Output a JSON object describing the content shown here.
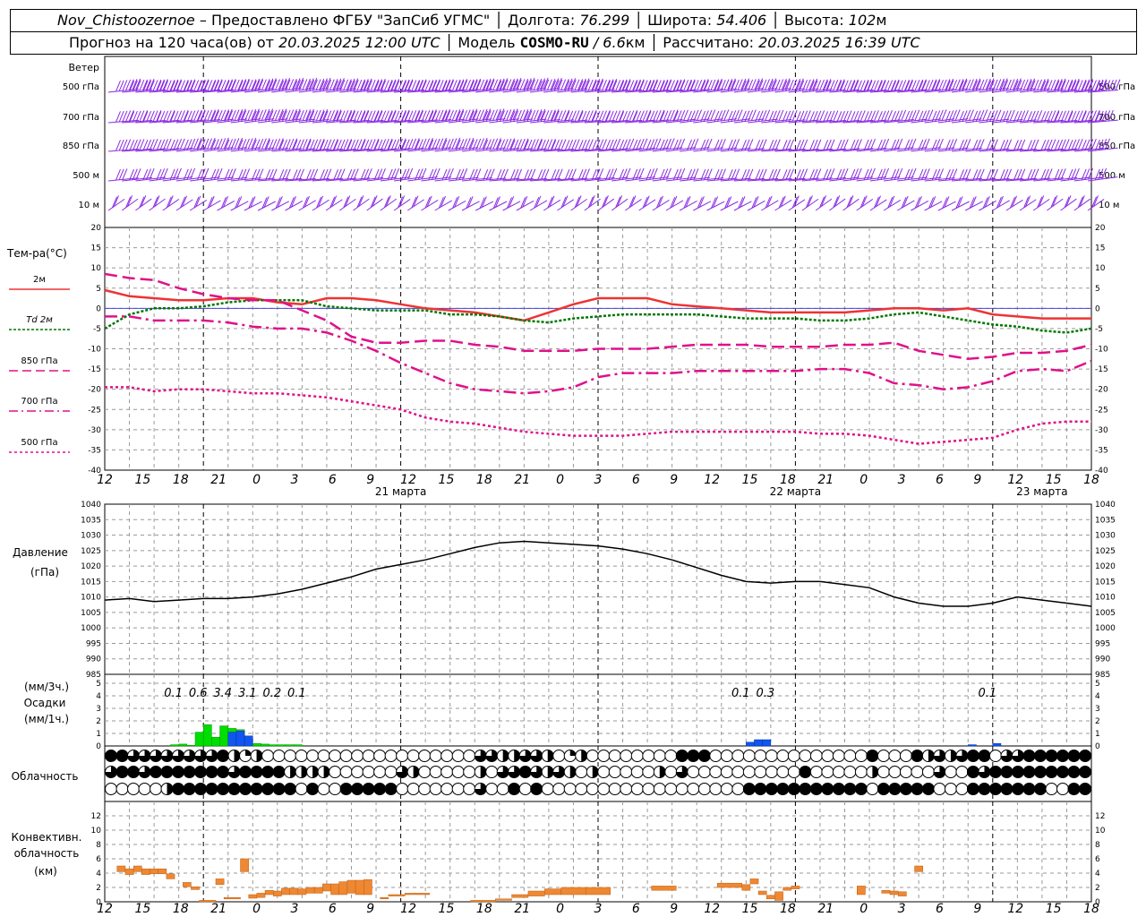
{
  "header": {
    "station": "Nov_Chistoozernoe",
    "provider_text": "– Предоставлено ФГБУ \"ЗапСиб УГМС\"",
    "lon_label": "Долгота:",
    "lon_value": "76.299",
    "lat_label": "Широта:",
    "lat_value": "54.406",
    "alt_label": "Высота:",
    "alt_value": "102",
    "alt_unit": "м",
    "forecast_prefix": "Прогноз на 120 часа(ов) от",
    "forecast_time": "20.03.2025 12:00 UTC",
    "model_label": "Модель",
    "model_name": "COSMO-RU",
    "model_res": "/ 6.6",
    "model_res_unit": "км",
    "computed_label": "Рассчитано:",
    "computed_time": "20.03.2025 16:39 UTC"
  },
  "colors": {
    "wind": "#8a2be2",
    "t2m": "#ee3333",
    "td2m": "#007700",
    "mag": "#e0108a",
    "rain": "#00dd00",
    "snow": "#1155ee",
    "conv": "#ee8833"
  },
  "time_axis": {
    "hour_labels": [
      "12",
      "15",
      "18",
      "21",
      "0",
      "3",
      "6",
      "9",
      "12",
      "15",
      "18",
      "21",
      "0",
      "3",
      "6",
      "9",
      "12",
      "15",
      "18",
      "21",
      "0",
      "3",
      "6",
      "9",
      "12",
      "15",
      "18"
    ],
    "date_labels": [
      "21 марта",
      "22 марта",
      "23 марта"
    ]
  },
  "wind_panel": {
    "title": "Ветер",
    "levels": [
      "500 гПа",
      "700 гПа",
      "850 гПа",
      "500 м",
      "10  м"
    ]
  },
  "chart_data": [
    {
      "type": "line",
      "title": "Тем-ра(°C)",
      "ylim": [
        -40,
        20
      ],
      "yticks": [
        20,
        15,
        10,
        5,
        0,
        -5,
        -10,
        -15,
        -20,
        -25,
        -30,
        -35,
        -40
      ],
      "x_unit": "hours from 20.03.2025 12 UTC",
      "series": [
        {
          "name": "2м",
          "x": [
            0,
            3,
            6,
            9,
            12,
            15,
            18,
            21,
            24,
            27,
            30,
            33,
            36,
            39,
            42,
            45,
            48,
            51,
            54,
            57,
            60,
            63,
            66,
            69,
            72,
            75,
            78,
            81,
            84,
            87,
            90,
            93,
            96,
            99,
            102,
            105,
            108,
            111,
            114,
            117,
            120
          ],
          "values": [
            4.5,
            3,
            2.5,
            2,
            2,
            2.5,
            2.5,
            1.5,
            1,
            2.5,
            2.5,
            2,
            1,
            0,
            -0.5,
            -1,
            -2,
            -3,
            -1,
            1,
            2.5,
            2.5,
            2.5,
            1,
            0.5,
            0,
            -0.5,
            -1,
            -1,
            -1,
            -1,
            -0.5,
            0,
            0,
            -0.5,
            0,
            -1.5,
            -2,
            -2.5,
            -2.5,
            -2.5
          ]
        },
        {
          "name": "Td 2м",
          "x": [
            0,
            3,
            6,
            9,
            12,
            15,
            18,
            21,
            24,
            27,
            30,
            33,
            36,
            39,
            42,
            45,
            48,
            51,
            54,
            57,
            60,
            63,
            66,
            69,
            72,
            75,
            78,
            81,
            84,
            87,
            90,
            93,
            96,
            99,
            102,
            105,
            108,
            111,
            114,
            117,
            120
          ],
          "values": [
            -5,
            -1.5,
            0,
            0,
            0.5,
            1.5,
            2,
            2,
            2,
            0.5,
            0,
            -0.5,
            -0.5,
            -0.5,
            -1.5,
            -1.5,
            -2,
            -3,
            -3.5,
            -2.5,
            -2,
            -1.5,
            -1.5,
            -1.5,
            -1.5,
            -2,
            -2.5,
            -2.5,
            -2.5,
            -3,
            -3,
            -2.5,
            -1.5,
            -1,
            -2,
            -3,
            -4,
            -4.5,
            -5.5,
            -6,
            -5
          ]
        },
        {
          "name": "850 гПа",
          "x": [
            0,
            3,
            6,
            9,
            12,
            15,
            18,
            21,
            24,
            27,
            30,
            33,
            36,
            39,
            42,
            45,
            48,
            51,
            54,
            57,
            60,
            63,
            66,
            69,
            72,
            75,
            78,
            81,
            84,
            87,
            90,
            93,
            96,
            99,
            102,
            105,
            108,
            111,
            114,
            117,
            120
          ],
          "values": [
            8.5,
            7.5,
            7,
            5,
            3.5,
            2.5,
            2,
            2,
            -0.5,
            -3,
            -7,
            -8.5,
            -8.5,
            -8,
            -8,
            -9,
            -9.5,
            -10.5,
            -10.5,
            -10.5,
            -10,
            -10,
            -10,
            -9.5,
            -9,
            -9,
            -9,
            -9.5,
            -9.5,
            -9.5,
            -9,
            -9,
            -8.5,
            -10.5,
            -11.5,
            -12.5,
            -12,
            -11,
            -11,
            -10.5,
            -9
          ]
        },
        {
          "name": "700 гПа",
          "x": [
            0,
            3,
            6,
            9,
            12,
            15,
            18,
            21,
            24,
            27,
            30,
            33,
            36,
            39,
            42,
            45,
            48,
            51,
            54,
            57,
            60,
            63,
            66,
            69,
            72,
            75,
            78,
            81,
            84,
            87,
            90,
            93,
            96,
            99,
            102,
            105,
            108,
            111,
            114,
            117,
            120
          ],
          "values": [
            -2,
            -2,
            -3,
            -3,
            -3,
            -3.5,
            -4.5,
            -5,
            -5,
            -6,
            -8,
            -10.5,
            -13.5,
            -16,
            -18.5,
            -20,
            -20.5,
            -21,
            -20.5,
            -19.5,
            -17,
            -16,
            -16,
            -16,
            -15.5,
            -15.5,
            -15.5,
            -15.5,
            -15.5,
            -15,
            -15,
            -16,
            -18.5,
            -19,
            -20,
            -19.5,
            -18,
            -15.5,
            -15,
            -15.5,
            -13
          ]
        },
        {
          "name": "500 гПа",
          "x": [
            0,
            3,
            6,
            9,
            12,
            15,
            18,
            21,
            24,
            27,
            30,
            33,
            36,
            39,
            42,
            45,
            48,
            51,
            54,
            57,
            60,
            63,
            66,
            69,
            72,
            75,
            78,
            81,
            84,
            87,
            90,
            93,
            96,
            99,
            102,
            105,
            108,
            111,
            114,
            117,
            120
          ],
          "values": [
            -19.5,
            -19.5,
            -20.5,
            -20,
            -20,
            -20.5,
            -21,
            -21,
            -21.5,
            -22,
            -23,
            -24,
            -25,
            -27,
            -28,
            -28.5,
            -29.5,
            -30.5,
            -31,
            -31.5,
            -31.5,
            -31.5,
            -31,
            -30.5,
            -30.5,
            -30.5,
            -30.5,
            -30.5,
            -30.5,
            -31,
            -31,
            -31.5,
            -32.5,
            -33.5,
            -33,
            -32.5,
            -32,
            -30,
            -28.5,
            -28,
            -28
          ]
        }
      ]
    },
    {
      "type": "line",
      "title": "Давление",
      "ylabel": "(гПа)",
      "ylim": [
        985,
        1040
      ],
      "yticks": [
        1040,
        1035,
        1030,
        1025,
        1020,
        1015,
        1010,
        1005,
        1000,
        995,
        990,
        985
      ],
      "series": [
        {
          "name": "Давление",
          "x": [
            0,
            3,
            6,
            9,
            12,
            15,
            18,
            21,
            24,
            27,
            30,
            33,
            36,
            39,
            42,
            45,
            48,
            51,
            54,
            57,
            60,
            63,
            66,
            69,
            72,
            75,
            78,
            81,
            84,
            87,
            90,
            93,
            96,
            99,
            102,
            105,
            108,
            111,
            114,
            117,
            120
          ],
          "values": [
            1009,
            1009.5,
            1008.5,
            1009,
            1009.5,
            1009.5,
            1010,
            1011,
            1012.5,
            1014.5,
            1016.5,
            1019,
            1020.5,
            1022,
            1024,
            1026,
            1027.5,
            1028,
            1027.5,
            1027,
            1026.5,
            1025.5,
            1024,
            1022,
            1019.5,
            1017,
            1015,
            1014.5,
            1015,
            1015,
            1014,
            1013,
            1010,
            1008,
            1007,
            1007,
            1008,
            1010,
            1009,
            1008,
            1007
          ]
        }
      ]
    },
    {
      "type": "bar",
      "title": "Осадки",
      "ylabel_top": "(мм/3ч.)",
      "ylabel_bottom": "(мм/1ч.)",
      "ylim": [
        0,
        5
      ],
      "yticks": [
        5,
        4,
        3,
        2,
        1,
        0
      ],
      "totals_3h": [
        {
          "x": 9,
          "label": "0.1"
        },
        {
          "x": 12,
          "label": "0.6"
        },
        {
          "x": 15,
          "label": "3.4"
        },
        {
          "x": 18,
          "label": "3.1"
        },
        {
          "x": 21,
          "label": "0.2"
        },
        {
          "x": 24,
          "label": "0.1"
        },
        {
          "x": 78,
          "label": "0.1"
        },
        {
          "x": 81,
          "label": "0.3"
        },
        {
          "x": 108,
          "label": "0.1"
        }
      ],
      "rain_hourly": [
        {
          "x": 9,
          "v": 0.1
        },
        {
          "x": 10,
          "v": 0.15
        },
        {
          "x": 11,
          "v": 0.05
        },
        {
          "x": 12,
          "v": 1.1
        },
        {
          "x": 13,
          "v": 1.7
        },
        {
          "x": 14,
          "v": 0.7
        },
        {
          "x": 15,
          "v": 1.6
        },
        {
          "x": 16,
          "v": 1.4
        },
        {
          "x": 17,
          "v": 1.3
        },
        {
          "x": 18,
          "v": 0.2
        },
        {
          "x": 19,
          "v": 0.2
        },
        {
          "x": 20,
          "v": 0.15
        },
        {
          "x": 21,
          "v": 0.1
        },
        {
          "x": 22,
          "v": 0.1
        },
        {
          "x": 23,
          "v": 0.1
        },
        {
          "x": 24,
          "v": 0.1
        }
      ],
      "snow_hourly": [
        {
          "x": 16,
          "v": 1.1
        },
        {
          "x": 17,
          "v": 1.2
        },
        {
          "x": 18,
          "v": 0.8
        },
        {
          "x": 79,
          "v": 0.3
        },
        {
          "x": 80,
          "v": 0.5
        },
        {
          "x": 81,
          "v": 0.5
        },
        {
          "x": 106,
          "v": 0.1
        },
        {
          "x": 109,
          "v": 0.2
        }
      ]
    },
    {
      "type": "table",
      "title": "Облачность",
      "rows": [
        "4433333333421200000000000000000003322332012000000004440000000000000040004232344033444444",
        "3443444444434444222200000032000002033432320200000203000000000040000020000030043444444444",
        "0000024444444444404004444400000003004040000000000000000004444444444404444400044444440044"
      ]
    },
    {
      "type": "bar",
      "title": "Конвективн. облачность",
      "ylabel": "(км)",
      "ylim": [
        0,
        14
      ],
      "yticks": [
        12,
        10,
        8,
        6,
        4,
        2,
        0
      ],
      "segments": [
        {
          "x0": 1.5,
          "x1": 2.5,
          "lo": 4.2,
          "hi": 5
        },
        {
          "x0": 2.5,
          "x1": 3.5,
          "lo": 3.8,
          "hi": 4.6
        },
        {
          "x0": 3.5,
          "x1": 4.5,
          "lo": 4.2,
          "hi": 5
        },
        {
          "x0": 4.5,
          "x1": 5.5,
          "lo": 3.8,
          "hi": 4.6
        },
        {
          "x0": 5.5,
          "x1": 6.5,
          "lo": 3.9,
          "hi": 4.6
        },
        {
          "x0": 6.5,
          "x1": 7.5,
          "lo": 3.9,
          "hi": 4.6
        },
        {
          "x0": 7.5,
          "x1": 8.5,
          "lo": 3.2,
          "hi": 3.9
        },
        {
          "x0": 9.5,
          "x1": 10.5,
          "lo": 2.1,
          "hi": 2.7
        },
        {
          "x0": 10.5,
          "x1": 11.5,
          "lo": 1.7,
          "hi": 2.1
        },
        {
          "x0": 11.5,
          "x1": 13.5,
          "lo": 0,
          "hi": 0.2
        },
        {
          "x0": 13.5,
          "x1": 14.5,
          "lo": 2.4,
          "hi": 3.2
        },
        {
          "x0": 14.5,
          "x1": 16.5,
          "lo": 0.4,
          "hi": 0.6
        },
        {
          "x0": 16.5,
          "x1": 17.5,
          "lo": 4.2,
          "hi": 6
        },
        {
          "x0": 17.5,
          "x1": 18.5,
          "lo": 0.5,
          "hi": 1
        },
        {
          "x0": 18.5,
          "x1": 19.5,
          "lo": 0.6,
          "hi": 1.2
        },
        {
          "x0": 19.5,
          "x1": 20.5,
          "lo": 1,
          "hi": 1.6
        },
        {
          "x0": 20.5,
          "x1": 21.5,
          "lo": 0.8,
          "hi": 1.5
        },
        {
          "x0": 21.5,
          "x1": 22.5,
          "lo": 1,
          "hi": 1.9
        },
        {
          "x0": 22.5,
          "x1": 23.5,
          "lo": 1,
          "hi": 1.9
        },
        {
          "x0": 23.5,
          "x1": 24.5,
          "lo": 1,
          "hi": 1.8
        },
        {
          "x0": 24.5,
          "x1": 25.5,
          "lo": 1.2,
          "hi": 2
        },
        {
          "x0": 25.5,
          "x1": 26.5,
          "lo": 1.2,
          "hi": 2
        },
        {
          "x0": 26.5,
          "x1": 27.5,
          "lo": 1.5,
          "hi": 2.5
        },
        {
          "x0": 27.5,
          "x1": 28.5,
          "lo": 1,
          "hi": 2.5
        },
        {
          "x0": 28.5,
          "x1": 29.5,
          "lo": 1,
          "hi": 2.8
        },
        {
          "x0": 29.5,
          "x1": 30.5,
          "lo": 1.2,
          "hi": 3
        },
        {
          "x0": 30.5,
          "x1": 31.5,
          "lo": 1,
          "hi": 3
        },
        {
          "x0": 31.5,
          "x1": 32.5,
          "lo": 1,
          "hi": 3.1
        },
        {
          "x0": 33.5,
          "x1": 34.5,
          "lo": 0.4,
          "hi": 0.6
        },
        {
          "x0": 34.5,
          "x1": 36.5,
          "lo": 0.8,
          "hi": 1
        },
        {
          "x0": 36.5,
          "x1": 39.5,
          "lo": 1,
          "hi": 1.2
        },
        {
          "x0": 44.5,
          "x1": 47.5,
          "lo": 0,
          "hi": 0.2
        },
        {
          "x0": 47.5,
          "x1": 49.5,
          "lo": 0.2,
          "hi": 0.4
        },
        {
          "x0": 49.5,
          "x1": 51.5,
          "lo": 0.6,
          "hi": 1
        },
        {
          "x0": 51.5,
          "x1": 53.5,
          "lo": 0.8,
          "hi": 1.5
        },
        {
          "x0": 53.5,
          "x1": 55.5,
          "lo": 1,
          "hi": 1.8
        },
        {
          "x0": 55.5,
          "x1": 58.5,
          "lo": 1,
          "hi": 2
        },
        {
          "x0": 58.5,
          "x1": 61.5,
          "lo": 1,
          "hi": 2
        },
        {
          "x0": 66.5,
          "x1": 69.5,
          "lo": 1.6,
          "hi": 2.2
        },
        {
          "x0": 74.5,
          "x1": 77.5,
          "lo": 2,
          "hi": 2.6
        },
        {
          "x0": 77.5,
          "x1": 78.5,
          "lo": 1.6,
          "hi": 2.4
        },
        {
          "x0": 78.5,
          "x1": 79.5,
          "lo": 2.5,
          "hi": 3.2
        },
        {
          "x0": 79.5,
          "x1": 80.5,
          "lo": 1,
          "hi": 1.5
        },
        {
          "x0": 80.5,
          "x1": 81.5,
          "lo": 0.4,
          "hi": 0.9
        },
        {
          "x0": 81.5,
          "x1": 82.5,
          "lo": 0.2,
          "hi": 1.4
        },
        {
          "x0": 82.5,
          "x1": 83.5,
          "lo": 1.6,
          "hi": 2
        },
        {
          "x0": 83.5,
          "x1": 84.5,
          "lo": 1.8,
          "hi": 2.2
        },
        {
          "x0": 91.5,
          "x1": 92.5,
          "lo": 1,
          "hi": 2.2
        },
        {
          "x0": 94.5,
          "x1": 95.5,
          "lo": 1.2,
          "hi": 1.6
        },
        {
          "x0": 95.5,
          "x1": 96.5,
          "lo": 1,
          "hi": 1.5
        },
        {
          "x0": 96.5,
          "x1": 97.5,
          "lo": 0.8,
          "hi": 1.4
        },
        {
          "x0": 98.5,
          "x1": 99.5,
          "lo": 4.2,
          "hi": 5
        }
      ]
    }
  ]
}
